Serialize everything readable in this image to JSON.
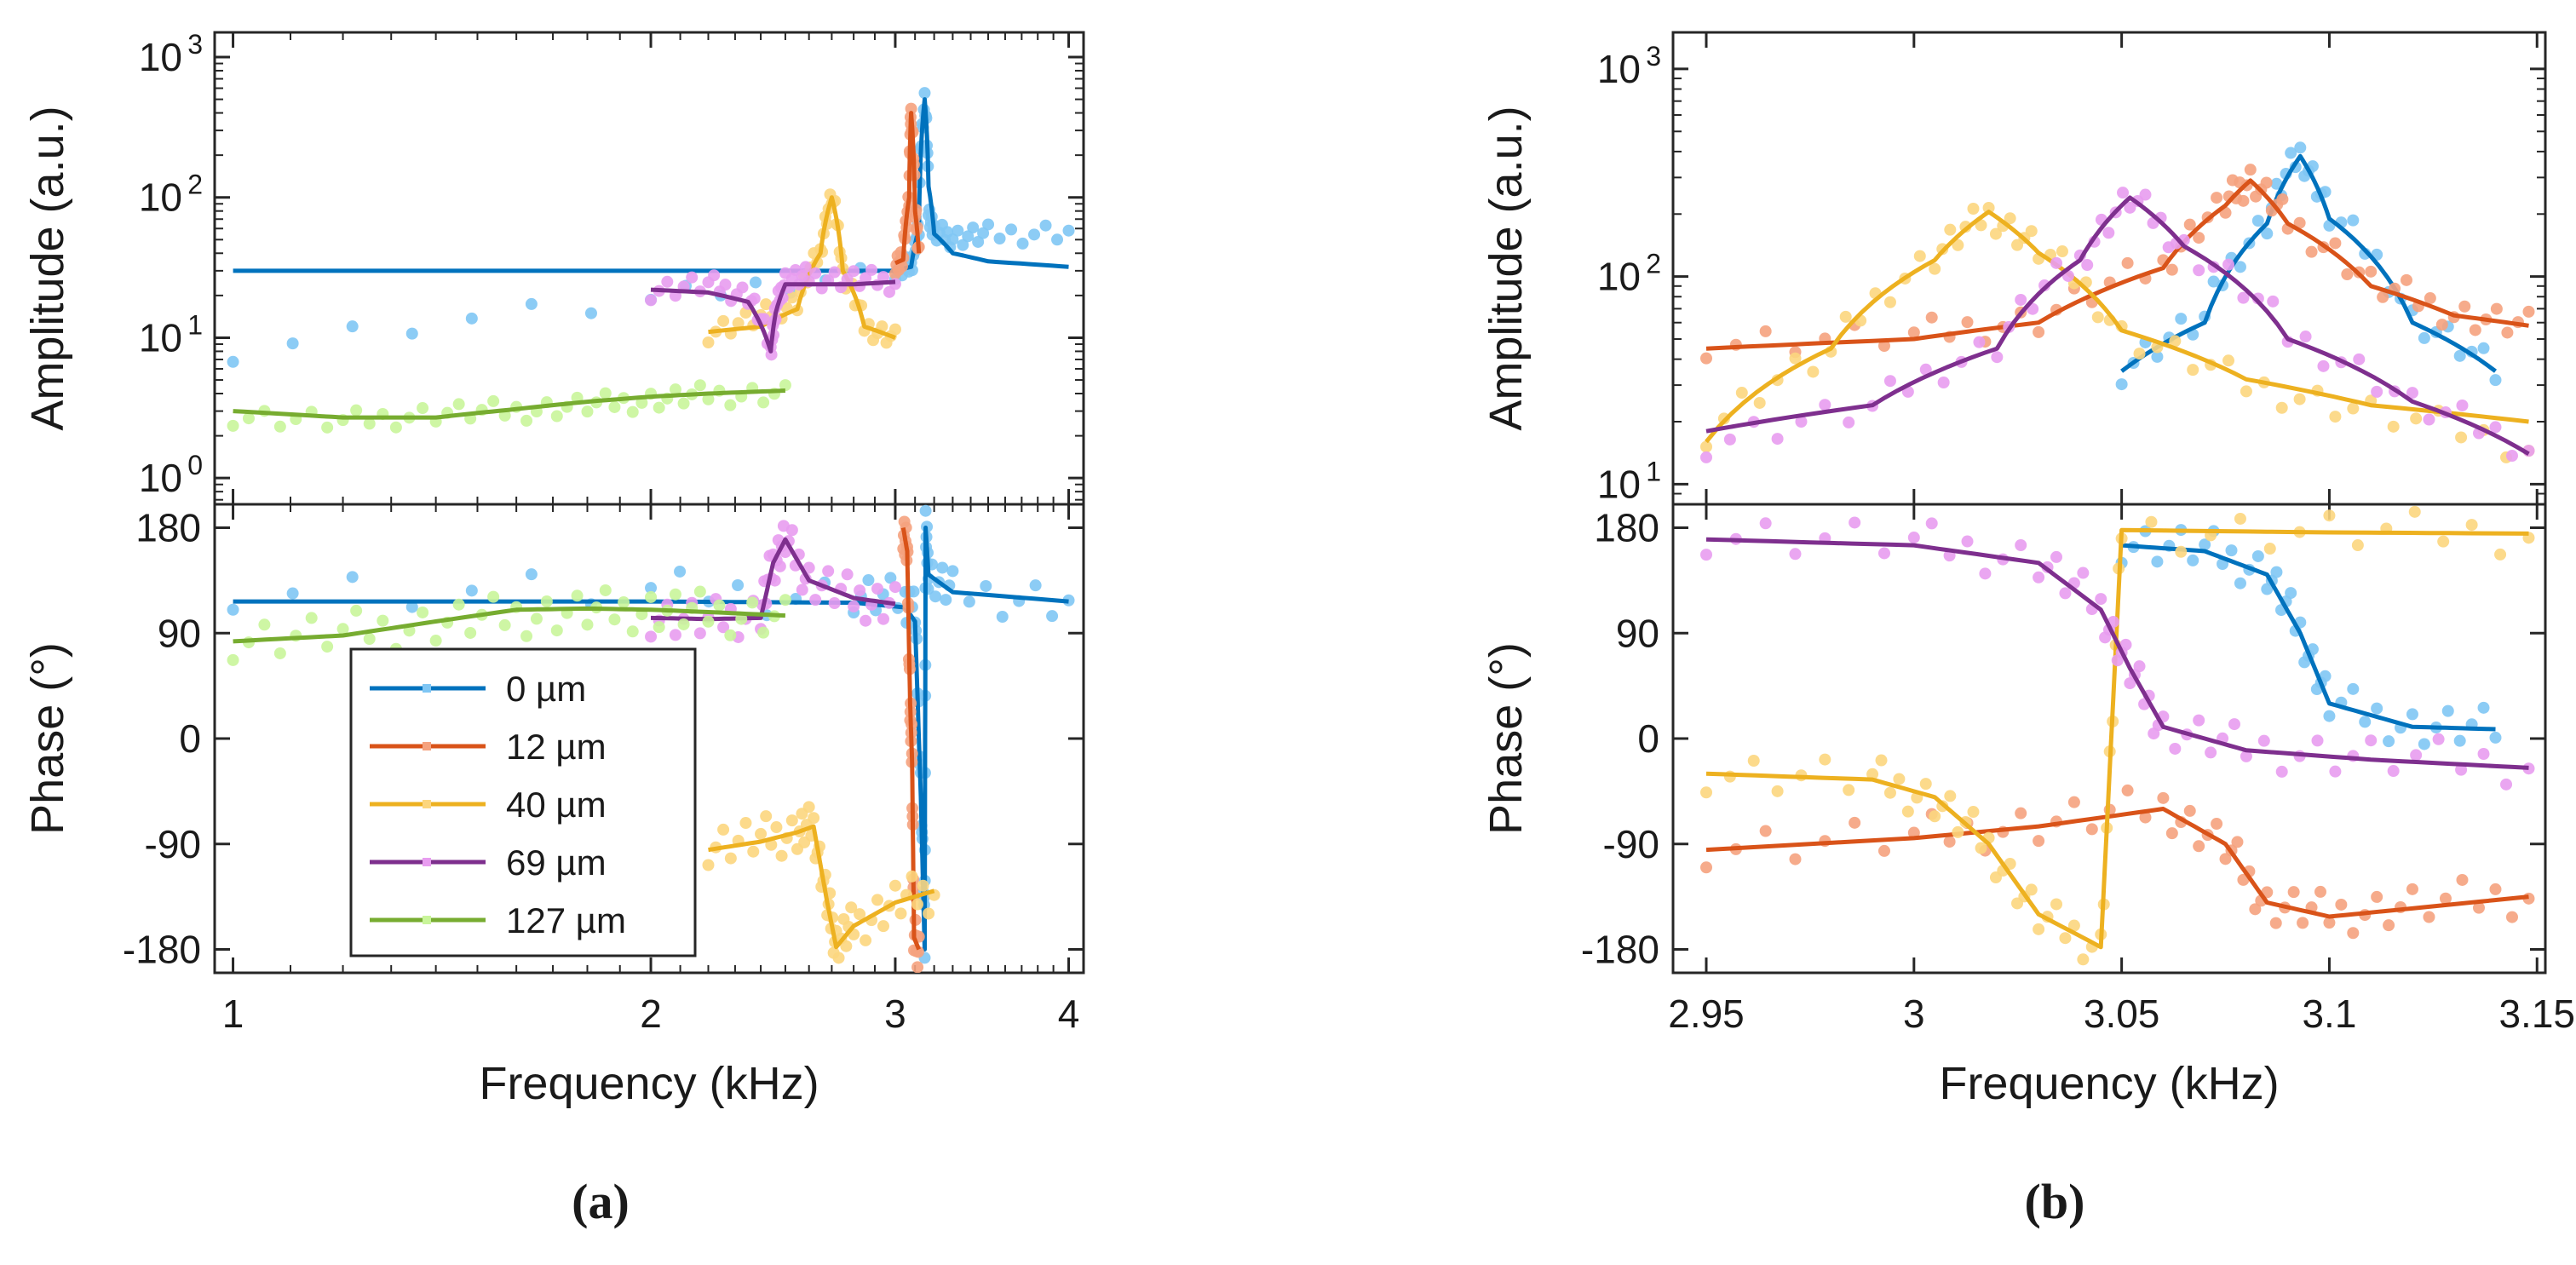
{
  "panel_labels": {
    "a": "(a)",
    "b": "(b)"
  },
  "colors": {
    "0": "#0072BD",
    "12": "#D95319",
    "40": "#EDB120",
    "69": "#7E2F8E",
    "127": "#77AC30",
    "0_light": "#7FC6F4",
    "12_light": "#F5A27E",
    "40_light": "#FCD67E",
    "69_light": "#E89CF0",
    "127_light": "#C9F59A"
  },
  "chart_data": [
    {
      "id": "a-amplitude",
      "type": "line",
      "xscale": "log",
      "yscale": "log",
      "xlim": [
        0.97,
        4.1
      ],
      "ylim": [
        0.65,
        1500
      ],
      "xticks": [
        1,
        2,
        3,
        4
      ],
      "yticks": [
        1,
        10,
        100,
        1000
      ],
      "ytick_labels": [
        "10",
        "10",
        "10",
        "10"
      ],
      "ytick_exponents": [
        "0",
        "1",
        "2",
        "3"
      ],
      "ylabel": "Amplitude (a.u.)",
      "xlabel": "",
      "series": [
        {
          "name": "0 µm",
          "color_key": "0",
          "x": [
            1.0,
            2.0,
            3.0,
            3.08,
            3.12,
            3.15,
            3.17,
            3.2,
            3.3,
            3.5,
            4.0
          ],
          "y": [
            30,
            30,
            30,
            32,
            60,
            500,
            120,
            55,
            40,
            35,
            32
          ],
          "scatter_y": [
            8,
            18,
            30,
            32,
            60,
            500,
            80,
            55,
            52,
            54,
            58
          ]
        },
        {
          "name": "12 µm",
          "color_key": "12",
          "x": [
            3.0,
            3.04,
            3.07,
            3.08,
            3.1,
            3.12
          ],
          "y": [
            34,
            36,
            100,
            400,
            80,
            40
          ],
          "scatter_y": [
            34,
            36,
            100,
            400,
            80,
            40
          ]
        },
        {
          "name": "40 µm",
          "color_key": "40",
          "x": [
            2.2,
            2.4,
            2.55,
            2.65,
            2.7,
            2.75,
            2.85,
            3.0
          ],
          "y": [
            11,
            12,
            16,
            40,
            100,
            30,
            12,
            10
          ],
          "scatter_y": [
            11,
            14,
            18,
            40,
            100,
            28,
            12,
            10
          ]
        },
        {
          "name": "69 µm",
          "color_key": "69",
          "x": [
            2.0,
            2.2,
            2.35,
            2.44,
            2.46,
            2.5,
            2.6,
            2.8,
            3.0
          ],
          "y": [
            22,
            21,
            18,
            8,
            15,
            24,
            24,
            24,
            25
          ],
          "scatter_y": [
            22,
            24,
            20,
            8,
            15,
            26,
            27,
            26,
            25
          ]
        },
        {
          "name": "127 µm",
          "color_key": "127",
          "x": [
            1.0,
            1.2,
            1.4,
            1.6,
            1.8,
            2.0,
            2.2,
            2.5
          ],
          "y": [
            3,
            2.7,
            2.7,
            3.1,
            3.5,
            3.8,
            4.0,
            4.2
          ],
          "scatter_y": [
            2.8,
            2.5,
            2.9,
            3.0,
            3.3,
            3.6,
            3.9,
            4.0
          ]
        }
      ]
    },
    {
      "id": "a-phase",
      "type": "line",
      "xscale": "log",
      "yscale": "linear",
      "xlim": [
        0.97,
        4.1
      ],
      "ylim": [
        -200,
        200
      ],
      "xticks": [
        1,
        2,
        3,
        4
      ],
      "xtick_labels": [
        "1",
        "2",
        "3",
        "4"
      ],
      "yticks": [
        -180,
        -90,
        0,
        90,
        180
      ],
      "ytick_labels": [
        "-180",
        "-90",
        "0",
        "90",
        "180"
      ],
      "ylabel": "Phase (°)",
      "xlabel": "Frequency (kHz)",
      "series": [
        {
          "name": "0 µm",
          "color_key": "0",
          "x": [
            1.0,
            2.0,
            2.8,
            3.05,
            3.1,
            3.13,
            3.15,
            3.155,
            3.17,
            3.3,
            4.0
          ],
          "y": [
            117,
            117,
            116,
            112,
            100,
            -50,
            -180,
            180,
            140,
            125,
            117
          ],
          "scatter_y": [
            128,
            125,
            122,
            118,
            110,
            -40,
            -180,
            180,
            140,
            125,
            118
          ]
        },
        {
          "name": "12 µm",
          "color_key": "12",
          "x": [
            3.04,
            3.06,
            3.075,
            3.085,
            3.095,
            3.12
          ],
          "y": [
            180,
            160,
            30,
            -20,
            -170,
            -180
          ],
          "scatter_y": [
            180,
            160,
            30,
            -20,
            -170,
            -180
          ]
        },
        {
          "name": "40 µm",
          "color_key": "40",
          "x": [
            2.2,
            2.4,
            2.55,
            2.62,
            2.68,
            2.72,
            2.8,
            3.0,
            3.2
          ],
          "y": [
            -95,
            -88,
            -80,
            -75,
            -140,
            -178,
            -160,
            -140,
            -130
          ],
          "scatter_y": [
            -90,
            -85,
            -80,
            -75,
            -140,
            -175,
            -160,
            -140,
            -130
          ]
        },
        {
          "name": "69 µm",
          "color_key": "69",
          "x": [
            2.0,
            2.2,
            2.4,
            2.45,
            2.5,
            2.6,
            2.8,
            3.0
          ],
          "y": [
            103,
            102,
            103,
            150,
            170,
            135,
            120,
            115
          ],
          "scatter_y": [
            105,
            100,
            108,
            150,
            170,
            135,
            120,
            115
          ]
        },
        {
          "name": "127 µm",
          "color_key": "127",
          "x": [
            1.0,
            1.2,
            1.4,
            1.6,
            1.8,
            2.0,
            2.2,
            2.5
          ],
          "y": [
            83,
            88,
            100,
            110,
            111,
            110,
            108,
            105
          ],
          "scatter_y": [
            85,
            90,
            98,
            105,
            108,
            110,
            107,
            104
          ]
        }
      ],
      "legend": {
        "placement": "bottom-left",
        "entries": [
          "0 µm",
          "12 µm",
          "40 µm",
          "69 µm",
          "127 µm"
        ]
      }
    },
    {
      "id": "b-amplitude",
      "type": "line",
      "xscale": "linear",
      "yscale": "log",
      "xlim": [
        2.942,
        3.152
      ],
      "ylim": [
        8,
        1500
      ],
      "xticks": [
        2.95,
        3.0,
        3.05,
        3.1,
        3.15
      ],
      "yticks": [
        10,
        100,
        1000
      ],
      "ytick_labels": [
        "10",
        "10",
        "10"
      ],
      "ytick_exponents": [
        "1",
        "2",
        "3"
      ],
      "ylabel": "Amplitude (a.u.)",
      "xlabel": "",
      "series": [
        {
          "name": "0 µm",
          "color_key": "0",
          "x": [
            3.05,
            3.07,
            3.085,
            3.093,
            3.1,
            3.12,
            3.14
          ],
          "y": [
            35,
            60,
            180,
            380,
            190,
            60,
            35
          ],
          "scatter_y": [
            36,
            62,
            185,
            390,
            195,
            62,
            34
          ]
        },
        {
          "name": "12 µm",
          "color_key": "12",
          "x": [
            2.95,
            3.0,
            3.03,
            3.06,
            3.075,
            3.081,
            3.09,
            3.11,
            3.13,
            3.148
          ],
          "y": [
            45,
            50,
            60,
            110,
            220,
            290,
            180,
            90,
            65,
            58
          ],
          "scatter_y": [
            48,
            52,
            62,
            112,
            225,
            295,
            182,
            92,
            66,
            57
          ]
        },
        {
          "name": "40 µm",
          "color_key": "40",
          "x": [
            2.95,
            2.98,
            3.005,
            3.018,
            3.03,
            3.05,
            3.08,
            3.11,
            3.148
          ],
          "y": [
            16,
            45,
            120,
            205,
            130,
            55,
            32,
            24,
            20
          ],
          "scatter_y": [
            18,
            42,
            125,
            200,
            135,
            52,
            30,
            22,
            15
          ]
        },
        {
          "name": "69 µm",
          "color_key": "69",
          "x": [
            2.95,
            2.99,
            3.02,
            3.04,
            3.052,
            3.065,
            3.09,
            3.12,
            3.148
          ],
          "y": [
            18,
            24,
            45,
            120,
            240,
            140,
            50,
            25,
            14
          ],
          "scatter_y": [
            16,
            23,
            47,
            118,
            238,
            135,
            52,
            24,
            15
          ]
        }
      ]
    },
    {
      "id": "b-phase",
      "type": "line",
      "xscale": "linear",
      "yscale": "linear",
      "xlim": [
        2.942,
        3.152
      ],
      "ylim": [
        -200,
        200
      ],
      "xticks": [
        2.95,
        3.0,
        3.05,
        3.1,
        3.15
      ],
      "xtick_labels": [
        "2.95",
        "3",
        "3.05",
        "3.1",
        "3.15"
      ],
      "yticks": [
        -180,
        -90,
        0,
        90,
        180
      ],
      "ytick_labels": [
        "-180",
        "-90",
        "0",
        "90",
        "180"
      ],
      "ylabel": "Phase (°)",
      "xlabel": "Frequency (kHz)",
      "series": [
        {
          "name": "0 µm",
          "color_key": "0",
          "x": [
            3.05,
            3.07,
            3.085,
            3.093,
            3.1,
            3.12,
            3.14
          ],
          "y": [
            165,
            160,
            140,
            90,
            30,
            10,
            8
          ],
          "scatter_y": [
            168,
            162,
            142,
            92,
            30,
            10,
            8
          ]
        },
        {
          "name": "12 µm",
          "color_key": "12",
          "x": [
            2.95,
            3.0,
            3.03,
            3.06,
            3.075,
            3.085,
            3.1,
            3.12,
            3.148
          ],
          "y": [
            -95,
            -85,
            -75,
            -60,
            -90,
            -140,
            -152,
            -145,
            -135
          ],
          "scatter_y": [
            -92,
            -84,
            -73,
            -58,
            -92,
            -142,
            -150,
            -143,
            -133
          ]
        },
        {
          "name": "40 µm",
          "color_key": "40",
          "x": [
            2.95,
            2.99,
            3.005,
            3.018,
            3.03,
            3.045,
            3.05,
            3.1,
            3.148
          ],
          "y": [
            -30,
            -35,
            -50,
            -90,
            -150,
            -178,
            178,
            176,
            175
          ],
          "scatter_y": [
            -28,
            -34,
            -52,
            -92,
            -152,
            -178,
            178,
            176,
            175
          ]
        },
        {
          "name": "69 µm",
          "color_key": "69",
          "x": [
            2.95,
            3.0,
            3.03,
            3.045,
            3.052,
            3.06,
            3.08,
            3.11,
            3.148
          ],
          "y": [
            170,
            165,
            150,
            110,
            60,
            10,
            -10,
            -18,
            -25
          ],
          "scatter_y": [
            175,
            168,
            152,
            112,
            58,
            8,
            -8,
            -16,
            -22
          ]
        }
      ]
    }
  ]
}
